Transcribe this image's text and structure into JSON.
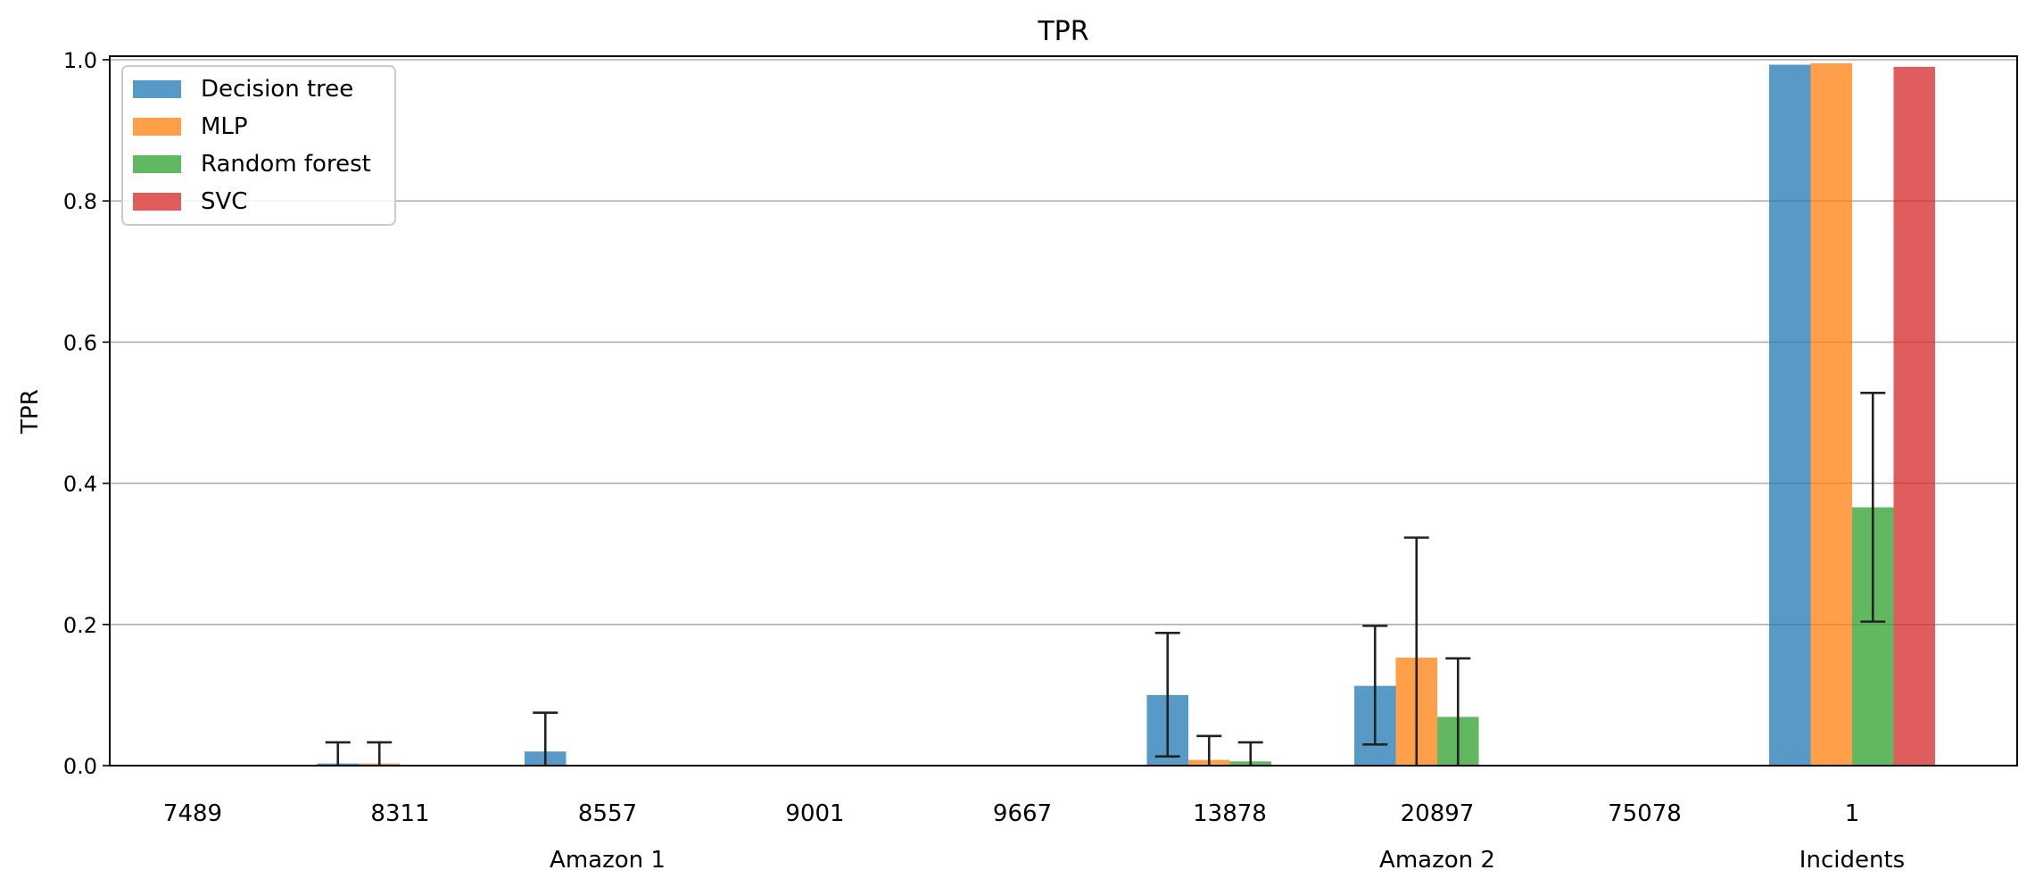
{
  "chart_data": {
    "type": "bar",
    "title": "TPR",
    "xlabel": "",
    "ylabel": "TPR",
    "ylim": [
      0,
      1.0
    ],
    "yticks": [
      "0.0",
      "0.2",
      "0.4",
      "0.6",
      "0.8",
      "1.0"
    ],
    "grid": "y",
    "legend_position": "top-left",
    "categories": [
      "7489",
      "8311",
      "8557",
      "9001",
      "9667",
      "13878",
      "20897",
      "75078",
      "1"
    ],
    "groups": [
      {
        "label": "Amazon 1",
        "span": [
          0,
          4
        ]
      },
      {
        "label": "Amazon 2",
        "span": [
          5,
          7
        ]
      },
      {
        "label": "Incidents",
        "span": [
          8,
          8
        ]
      }
    ],
    "series": [
      {
        "name": "Decision tree",
        "color": "#1f77b4",
        "values": [
          0.0,
          0.003,
          0.02,
          0.0,
          0.0,
          0.1,
          0.113,
          0.0,
          0.993
        ],
        "err_low": [
          null,
          null,
          null,
          null,
          null,
          0.013,
          0.03,
          null,
          null
        ],
        "err_high": [
          null,
          0.033,
          0.075,
          null,
          null,
          0.188,
          0.198,
          null,
          null
        ]
      },
      {
        "name": "MLP",
        "color": "#ff7f0e",
        "values": [
          0.0,
          0.003,
          0.0,
          0.0,
          0.0,
          0.008,
          0.153,
          0.0,
          0.995
        ],
        "err_low": [
          null,
          null,
          null,
          null,
          null,
          null,
          0.0,
          null,
          null
        ],
        "err_high": [
          null,
          0.033,
          null,
          null,
          null,
          0.042,
          0.323,
          null,
          null
        ]
      },
      {
        "name": "Random forest",
        "color": "#2ca02c",
        "values": [
          0.0,
          0.0,
          0.0,
          0.0,
          0.0,
          0.006,
          0.069,
          0.0,
          0.366
        ],
        "err_low": [
          null,
          null,
          null,
          null,
          null,
          null,
          0.0,
          null,
          0.204
        ],
        "err_high": [
          null,
          null,
          null,
          null,
          null,
          0.033,
          0.152,
          null,
          0.528
        ]
      },
      {
        "name": "SVC",
        "color": "#d62728",
        "values": [
          0.0,
          0.0,
          0.0,
          0.0,
          0.0,
          0.0,
          0.0,
          0.0,
          0.99
        ],
        "err_low": [
          null,
          null,
          null,
          null,
          null,
          null,
          null,
          null,
          null
        ],
        "err_high": [
          null,
          null,
          null,
          null,
          null,
          null,
          null,
          null,
          null
        ]
      }
    ]
  }
}
